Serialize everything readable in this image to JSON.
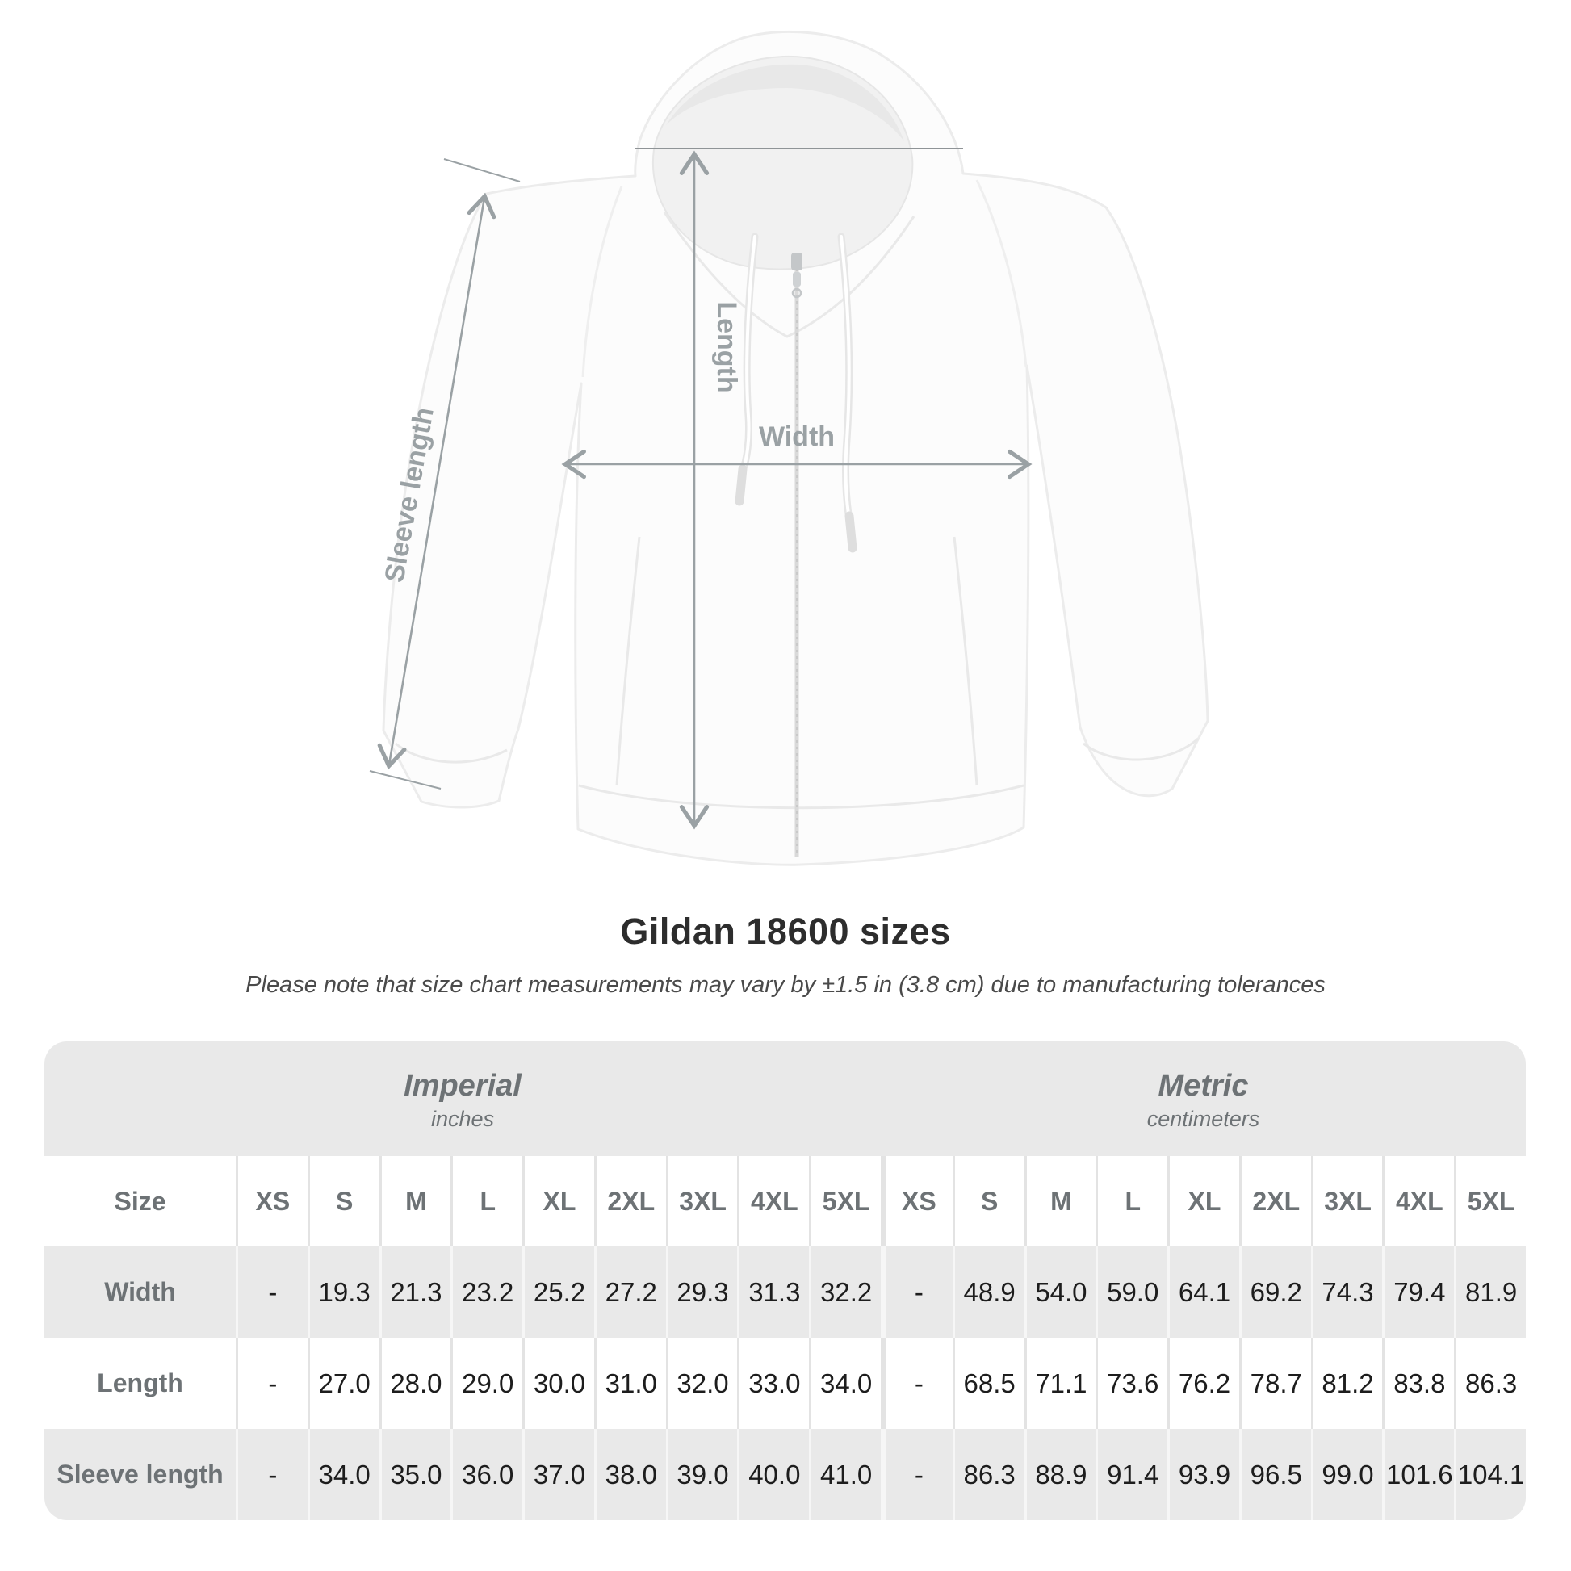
{
  "diagram": {
    "length_label": "Length",
    "width_label": "Width",
    "sleeve_label": "Sleeve length"
  },
  "title": "Gildan 18600 sizes",
  "subtitle": "Please note that size chart measurements may vary by ±1.5 in (3.8 cm) due to manufacturing tolerances",
  "table": {
    "groups": [
      {
        "name": "Imperial",
        "unit": "inches"
      },
      {
        "name": "Metric",
        "unit": "centimeters"
      }
    ],
    "size_label": "Size",
    "sizes": [
      "XS",
      "S",
      "M",
      "L",
      "XL",
      "2XL",
      "3XL",
      "4XL",
      "5XL"
    ],
    "rows": [
      {
        "label": "Width",
        "imperial": [
          "-",
          "19.3",
          "21.3",
          "23.2",
          "25.2",
          "27.2",
          "29.3",
          "31.3",
          "32.2"
        ],
        "metric": [
          "-",
          "48.9",
          "54.0",
          "59.0",
          "64.1",
          "69.2",
          "74.3",
          "79.4",
          "81.9"
        ]
      },
      {
        "label": "Length",
        "imperial": [
          "-",
          "27.0",
          "28.0",
          "29.0",
          "30.0",
          "31.0",
          "32.0",
          "33.0",
          "34.0"
        ],
        "metric": [
          "-",
          "68.5",
          "71.1",
          "73.6",
          "76.2",
          "78.7",
          "81.2",
          "83.8",
          "86.3"
        ]
      },
      {
        "label": "Sleeve length",
        "imperial": [
          "-",
          "34.0",
          "35.0",
          "36.0",
          "37.0",
          "38.0",
          "39.0",
          "40.0",
          "41.0"
        ],
        "metric": [
          "-",
          "86.3",
          "88.9",
          "91.4",
          "93.9",
          "96.5",
          "99.0",
          "101.6",
          "104.1"
        ]
      }
    ]
  },
  "chart_data": {
    "type": "table",
    "title": "Gildan 18600 sizes",
    "note": "Please note that size chart measurements may vary by ±1.5 in (3.8 cm) due to manufacturing tolerances",
    "columns": [
      "XS",
      "S",
      "M",
      "L",
      "XL",
      "2XL",
      "3XL",
      "4XL",
      "5XL"
    ],
    "series": [
      {
        "name": "Width (inches)",
        "values": [
          null,
          19.3,
          21.3,
          23.2,
          25.2,
          27.2,
          29.3,
          31.3,
          32.2
        ]
      },
      {
        "name": "Length (inches)",
        "values": [
          null,
          27.0,
          28.0,
          29.0,
          30.0,
          31.0,
          32.0,
          33.0,
          34.0
        ]
      },
      {
        "name": "Sleeve length (inches)",
        "values": [
          null,
          34.0,
          35.0,
          36.0,
          37.0,
          38.0,
          39.0,
          40.0,
          41.0
        ]
      },
      {
        "name": "Width (cm)",
        "values": [
          null,
          48.9,
          54.0,
          59.0,
          64.1,
          69.2,
          74.3,
          79.4,
          81.9
        ]
      },
      {
        "name": "Length (cm)",
        "values": [
          null,
          68.5,
          71.1,
          73.6,
          76.2,
          78.7,
          81.2,
          83.8,
          86.3
        ]
      },
      {
        "name": "Sleeve length (cm)",
        "values": [
          null,
          86.3,
          88.9,
          91.4,
          93.9,
          96.5,
          99.0,
          101.6,
          104.1
        ]
      }
    ]
  },
  "colors": {
    "band_gray": "#e9e9e9",
    "label_gray": "#6d7275",
    "value_black": "#1d1d1d",
    "separator_on_white": "#e3e3e3",
    "separator_on_gray": "#f6f6f6",
    "annotation_gray": "#9aa1a4",
    "title_color": "#2d2d2d"
  }
}
